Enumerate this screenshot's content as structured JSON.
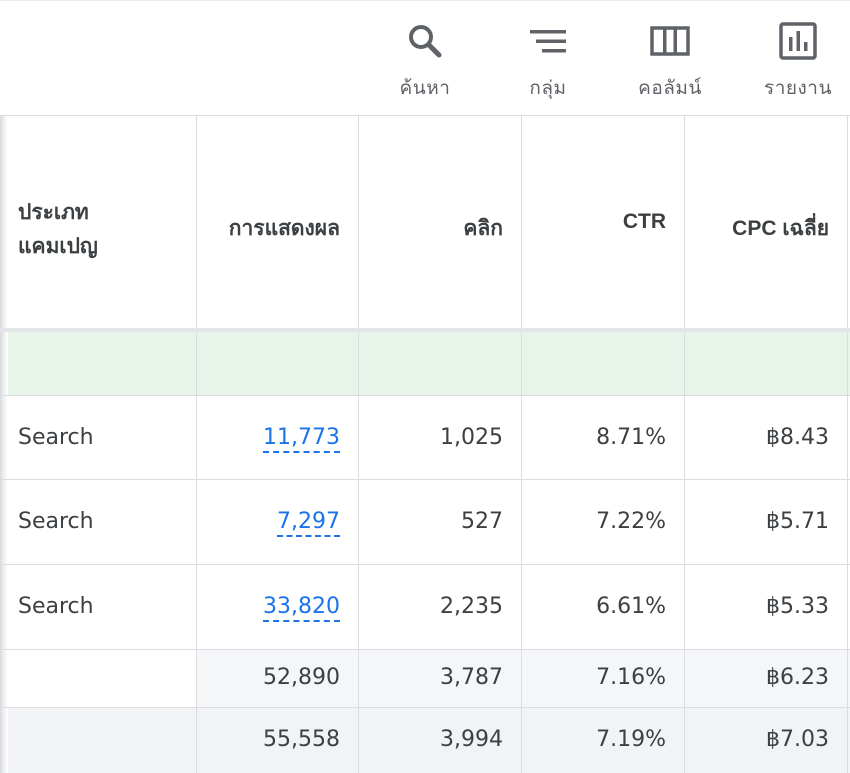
{
  "toolbar": {
    "search_label": "ค้นหา",
    "group_label": "กลุ่ม",
    "columns_label": "คอลัมน์",
    "report_label": "รายงาน"
  },
  "table": {
    "headers": {
      "campaign_type": "ประเภท\nแคมเปญ",
      "impressions": "การแสดงผล",
      "clicks": "คลิก",
      "ctr": "CTR",
      "avg_cpc": "CPC เฉลี่ย"
    },
    "rows": [
      {
        "type": "Search",
        "impressions": "11,773",
        "clicks": "1,025",
        "ctr": "8.71%",
        "cpc": "฿8.43"
      },
      {
        "type": "Search",
        "impressions": "7,297",
        "clicks": "527",
        "ctr": "7.22%",
        "cpc": "฿5.71"
      },
      {
        "type": "Search",
        "impressions": "33,820",
        "clicks": "2,235",
        "ctr": "6.61%",
        "cpc": "฿5.33"
      }
    ],
    "totals": [
      {
        "impressions": "52,890",
        "clicks": "3,787",
        "ctr": "7.16%",
        "cpc": "฿6.23"
      },
      {
        "impressions": "55,558",
        "clicks": "3,994",
        "ctr": "7.19%",
        "cpc": "฿7.03"
      }
    ]
  },
  "colors": {
    "link": "#1a73e8",
    "highlight_row": "#e6f4ea",
    "totals_row": "#f1f3f4"
  }
}
